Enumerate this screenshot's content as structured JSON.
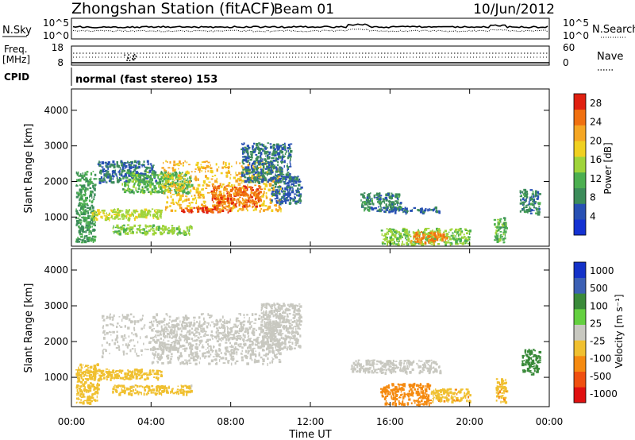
{
  "header": {
    "station": "Zhongshan Station (fitACF)",
    "beam": "Beam 01",
    "date": "10/Jun/2012"
  },
  "panels": {
    "noise": {
      "left_label": "N.Sky",
      "right_label": "N.Search",
      "left_top": "10^5",
      "left_bottom": "10^0",
      "right_top": "10^5",
      "right_bottom": "10^0"
    },
    "freq": {
      "left_label_1": "Freq.",
      "left_label_2": "[MHz]",
      "right_label": "Nave",
      "left_top": "18",
      "left_bottom": "8",
      "right_top": "60",
      "right_bottom": "0"
    },
    "cpid": {
      "label": "CPID",
      "text": "normal (fast stereo) 153"
    }
  },
  "colors": {
    "power": [
      "#1432d2",
      "#2850b4",
      "#3c8c5a",
      "#4caf50",
      "#9fd43a",
      "#f0d020",
      "#f5a623",
      "#f07010",
      "#e02010"
    ],
    "velocity": [
      "#e01010",
      "#f05010",
      "#f58a10",
      "#f0c030",
      "#c8c8c0",
      "#64d040",
      "#3a8a3a",
      "#3c60b4",
      "#1432c8"
    ]
  },
  "chart_data": [
    {
      "type": "heatmap",
      "name": "power",
      "xlabel": "",
      "ylabel": "Slant Range [km]",
      "x_ticks": [
        "00:00",
        "04:00",
        "08:00",
        "12:00",
        "16:00",
        "20:00",
        "00:00"
      ],
      "y_ticks": [
        "1000",
        "2000",
        "3000",
        "4000"
      ],
      "xlim_hours": [
        0,
        24
      ],
      "ylim_km": [
        180,
        4600
      ],
      "colorbar": {
        "label": "Power [dB]",
        "ticks": [
          "4",
          "8",
          "12",
          "16",
          "20",
          "24",
          "28"
        ],
        "range": [
          0,
          30
        ]
      },
      "regions": [
        {
          "hours": [
            0.2,
            1.2
          ],
          "km": [
            300,
            2300
          ],
          "level": 10
        },
        {
          "hours": [
            1.3,
            4.2
          ],
          "km": [
            2000,
            2600
          ],
          "level": 7
        },
        {
          "hours": [
            2.5,
            6.0
          ],
          "km": [
            1700,
            2300
          ],
          "level": 12
        },
        {
          "hours": [
            4.5,
            10.5
          ],
          "km": [
            1200,
            2600
          ],
          "level": 20
        },
        {
          "hours": [
            7.0,
            9.5
          ],
          "km": [
            1300,
            1900
          ],
          "level": 25
        },
        {
          "hours": [
            5.5,
            8.0
          ],
          "km": [
            1150,
            1300
          ],
          "level": 27
        },
        {
          "hours": [
            1.0,
            4.5
          ],
          "km": [
            950,
            1250
          ],
          "level": 16
        },
        {
          "hours": [
            2.0,
            6.0
          ],
          "km": [
            550,
            800
          ],
          "level": 14
        },
        {
          "hours": [
            8.5,
            11.0
          ],
          "km": [
            2000,
            3100
          ],
          "level": 7
        },
        {
          "hours": [
            10.0,
            11.5
          ],
          "km": [
            1400,
            2200
          ],
          "level": 6
        },
        {
          "hours": [
            14.5,
            16.5
          ],
          "km": [
            1200,
            1700
          ],
          "level": 8
        },
        {
          "hours": [
            15.0,
            18.5
          ],
          "km": [
            1150,
            1300
          ],
          "level": 6
        },
        {
          "hours": [
            15.5,
            20.0
          ],
          "km": [
            250,
            700
          ],
          "level": 14
        },
        {
          "hours": [
            17.0,
            18.8
          ],
          "km": [
            300,
            600
          ],
          "level": 24
        },
        {
          "hours": [
            21.2,
            21.8
          ],
          "km": [
            300,
            1000
          ],
          "level": 12
        },
        {
          "hours": [
            22.5,
            23.5
          ],
          "km": [
            1100,
            1800
          ],
          "level": 8
        }
      ]
    },
    {
      "type": "heatmap",
      "name": "velocity",
      "xlabel": "Time UT",
      "ylabel": "Slant Range [km]",
      "x_ticks": [
        "00:00",
        "04:00",
        "08:00",
        "12:00",
        "16:00",
        "20:00",
        "00:00"
      ],
      "y_ticks": [
        "1000",
        "2000",
        "3000",
        "4000"
      ],
      "xlim_hours": [
        0,
        24
      ],
      "ylim_km": [
        180,
        4600
      ],
      "colorbar": {
        "label": "Velocity [m s⁻¹]",
        "ticks": [
          "1000",
          "500",
          "100",
          "25",
          "-25",
          "-100",
          "-500",
          "-1000"
        ],
        "range": [
          -1000,
          1000
        ]
      },
      "regions": [
        {
          "hours": [
            0.2,
            1.3
          ],
          "km": [
            300,
            1400
          ],
          "level": -200
        },
        {
          "hours": [
            1.5,
            10.5
          ],
          "km": [
            1600,
            2800
          ],
          "level": 0
        },
        {
          "hours": [
            4.0,
            10.5
          ],
          "km": [
            1400,
            2600
          ],
          "level": -60
        },
        {
          "hours": [
            1.0,
            4.5
          ],
          "km": [
            950,
            1250
          ],
          "level": -200
        },
        {
          "hours": [
            2.0,
            6.0
          ],
          "km": [
            550,
            800
          ],
          "level": -150
        },
        {
          "hours": [
            9.5,
            11.5
          ],
          "km": [
            1800,
            3100
          ],
          "level": 50
        },
        {
          "hours": [
            14.0,
            18.5
          ],
          "km": [
            1150,
            1500
          ],
          "level": 0
        },
        {
          "hours": [
            15.5,
            18.0
          ],
          "km": [
            250,
            850
          ],
          "level": -400
        },
        {
          "hours": [
            18.0,
            20.0
          ],
          "km": [
            350,
            700
          ],
          "level": -300
        },
        {
          "hours": [
            21.3,
            21.8
          ],
          "km": [
            300,
            1000
          ],
          "level": -300
        },
        {
          "hours": [
            22.6,
            23.5
          ],
          "km": [
            1100,
            1800
          ],
          "level": 500
        }
      ]
    }
  ]
}
